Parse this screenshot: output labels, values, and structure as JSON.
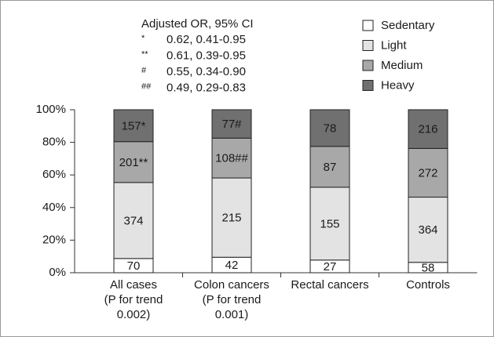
{
  "chart_data": {
    "type": "bar",
    "stacked": "percent",
    "categories": [
      [
        "All cases",
        "(P for trend",
        "0.002)"
      ],
      [
        "Colon cancers",
        "(P for trend",
        "0.001)"
      ],
      [
        "Rectal cancers"
      ],
      [
        "Controls"
      ]
    ],
    "series": [
      {
        "name": "Sedentary",
        "color": "#ffffff",
        "values": [
          70,
          42,
          27,
          58
        ]
      },
      {
        "name": "Light",
        "color": "#e3e3e3",
        "values": [
          374,
          215,
          155,
          364
        ]
      },
      {
        "name": "Medium",
        "color": "#a8a8a8",
        "values": [
          201,
          108,
          87,
          272
        ],
        "value_labels": [
          "201**",
          "108##",
          "87",
          "272"
        ]
      },
      {
        "name": "Heavy",
        "color": "#707070",
        "values": [
          157,
          77,
          78,
          216
        ],
        "value_labels": [
          "157*",
          "77#",
          "78",
          "216"
        ]
      }
    ],
    "ylim": [
      0,
      100
    ],
    "yticks": [
      {
        "value": 0,
        "label": "0%"
      },
      {
        "value": 20,
        "label": "20%"
      },
      {
        "value": 40,
        "label": "40%"
      },
      {
        "value": 60,
        "label": "60%"
      },
      {
        "value": 80,
        "label": "80%"
      },
      {
        "value": 100,
        "label": "100%"
      }
    ],
    "legend": "top-right",
    "annotation": {
      "title": "Adjusted OR, 95% CI",
      "rows": [
        {
          "marker": "*",
          "text": "0.62, 0.41-0.95"
        },
        {
          "marker": "**",
          "text": "0.61, 0.39-0.95"
        },
        {
          "marker": "#",
          "text": "0.55, 0.34-0.90"
        },
        {
          "marker": "##",
          "text": "0.49, 0.29-0.83"
        }
      ]
    }
  }
}
